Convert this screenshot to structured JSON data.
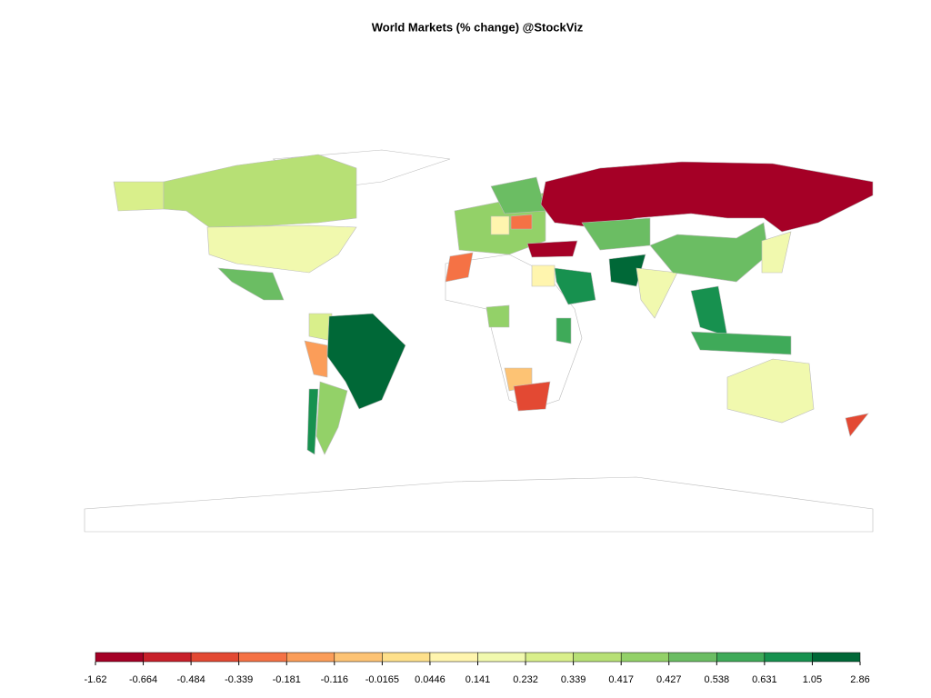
{
  "chart_data": {
    "type": "choropleth",
    "title": "World Markets (% change) @StockViz",
    "breaks": [
      -1.62,
      -0.664,
      -0.484,
      -0.339,
      -0.181,
      -0.116,
      -0.0165,
      0.0446,
      0.141,
      0.232,
      0.339,
      0.417,
      0.427,
      0.538,
      0.631,
      1.05,
      2.86
    ],
    "colors": [
      "#a50026",
      "#c8202a",
      "#e34933",
      "#f57245",
      "#fb9d59",
      "#fdc374",
      "#fee08b",
      "#fff5ae",
      "#f1f9ae",
      "#d9ef8b",
      "#b7e075",
      "#93d168",
      "#6bbd63",
      "#3faa59",
      "#17914f",
      "#006837"
    ]
  }
}
